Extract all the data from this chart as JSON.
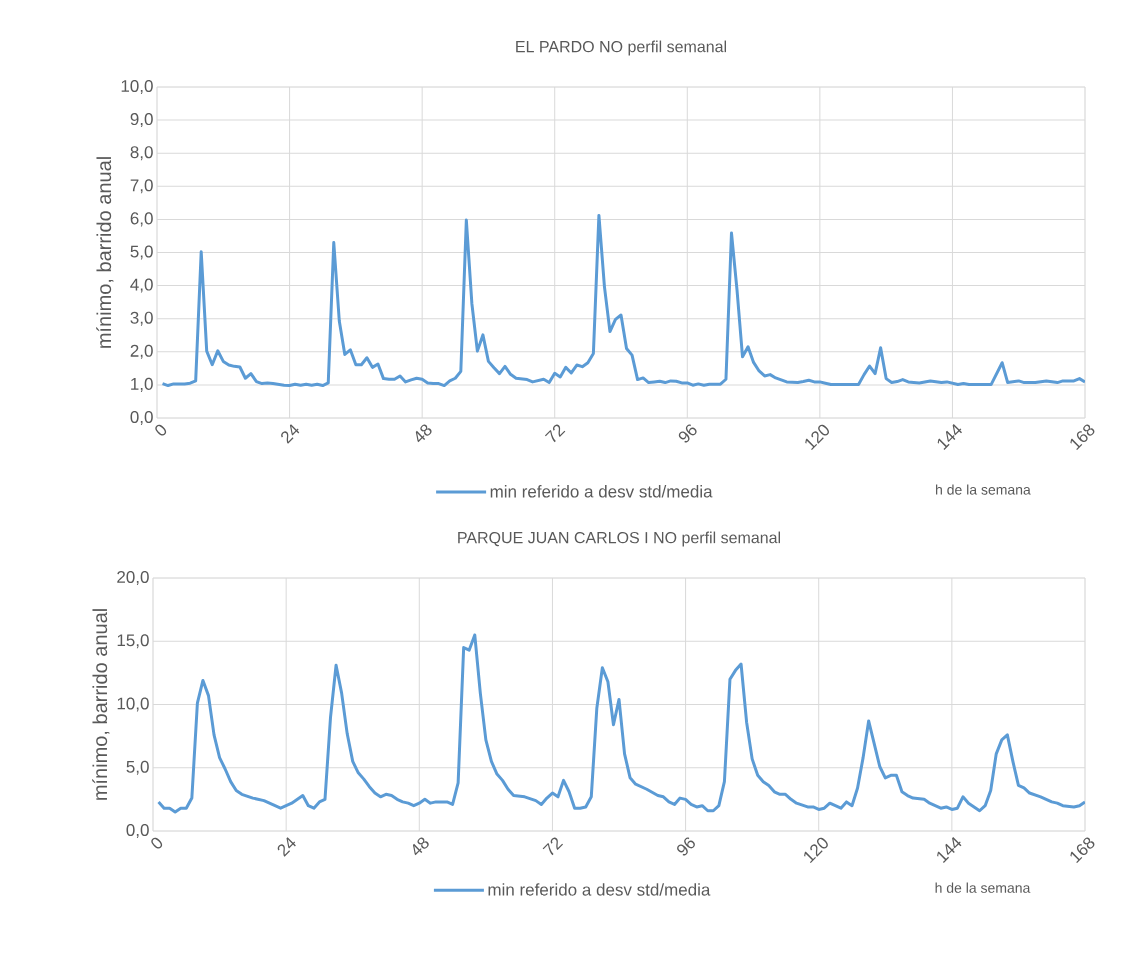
{
  "chart_data": [
    {
      "type": "line",
      "title": "EL PARDO NO perfil semanal",
      "ylabel": "mínimo, barrido anual",
      "xlabel": "h de la semana",
      "x": [
        1,
        2,
        3,
        5,
        6,
        7,
        8,
        9,
        10,
        11,
        12,
        13,
        14,
        15,
        16,
        17,
        18,
        19,
        20,
        21,
        23,
        24,
        25,
        26,
        27,
        28,
        29,
        30,
        31,
        32,
        33,
        34,
        35,
        36,
        37,
        38,
        39,
        40,
        41,
        42,
        43,
        44,
        45,
        46,
        47,
        48,
        49,
        50,
        51,
        52,
        53,
        54,
        55,
        56,
        57,
        58,
        59,
        60,
        61,
        62,
        63,
        64,
        65,
        66,
        67,
        68,
        69,
        70,
        71,
        72,
        73,
        74,
        75,
        76,
        77,
        78,
        79,
        80,
        81,
        82,
        83,
        84,
        85,
        86,
        87,
        88,
        89,
        90,
        91,
        92,
        93,
        94,
        95,
        96,
        97,
        98,
        99,
        100,
        101,
        102,
        103,
        104,
        105,
        106,
        107,
        108,
        109,
        110,
        111,
        112,
        113,
        114,
        115,
        116,
        117,
        118,
        119,
        120,
        121,
        122,
        127,
        128,
        129,
        130,
        131,
        132,
        133,
        134,
        135,
        136,
        138,
        140,
        142,
        143,
        145,
        146,
        147,
        151,
        153,
        154,
        156,
        157,
        159,
        161,
        163,
        164,
        166,
        167,
        168
      ],
      "series": [
        {
          "name": "min referido a desv std/media",
          "color": "#5b9bd5",
          "values": [
            1.04,
            0.98,
            1.03,
            1.03,
            1.05,
            1.12,
            5.02,
            2.02,
            1.61,
            2.03,
            1.71,
            1.6,
            1.56,
            1.54,
            1.2,
            1.34,
            1.1,
            1.04,
            1.06,
            1.04,
            0.99,
            0.98,
            1.02,
            0.99,
            1.02,
            0.99,
            1.02,
            0.98,
            1.06,
            5.3,
            2.93,
            1.92,
            2.06,
            1.61,
            1.61,
            1.82,
            1.53,
            1.63,
            1.19,
            1.17,
            1.17,
            1.27,
            1.09,
            1.15,
            1.2,
            1.17,
            1.06,
            1.04,
            1.04,
            0.98,
            1.12,
            1.2,
            1.41,
            5.98,
            3.46,
            2.02,
            2.51,
            1.71,
            1.52,
            1.34,
            1.56,
            1.32,
            1.2,
            1.18,
            1.16,
            1.09,
            1.13,
            1.17,
            1.07,
            1.35,
            1.24,
            1.53,
            1.36,
            1.6,
            1.55,
            1.67,
            1.95,
            6.12,
            3.97,
            2.61,
            2.98,
            3.11,
            2.1,
            1.9,
            1.16,
            1.21,
            1.07,
            1.09,
            1.11,
            1.07,
            1.12,
            1.11,
            1.06,
            1.06,
            0.99,
            1.03,
            0.99,
            1.02,
            1.02,
            1.02,
            1.17,
            5.59,
            3.87,
            1.85,
            2.15,
            1.68,
            1.42,
            1.27,
            1.31,
            1.21,
            1.15,
            1.09,
            1.08,
            1.07,
            1.1,
            1.14,
            1.09,
            1.09,
            1.05,
            1.01,
            1.01,
            1.31,
            1.57,
            1.34,
            2.12,
            1.19,
            1.07,
            1.1,
            1.16,
            1.09,
            1.06,
            1.12,
            1.07,
            1.09,
            1.01,
            1.04,
            1.01,
            1.01,
            1.67,
            1.07,
            1.12,
            1.07,
            1.07,
            1.12,
            1.07,
            1.12,
            1.12,
            1.19,
            1.09
          ]
        }
      ],
      "xlim": [
        0,
        168
      ],
      "xticks": [
        0,
        24,
        48,
        72,
        96,
        120,
        144,
        168
      ],
      "ylim": [
        0,
        10
      ],
      "yticks": [
        {
          "value": 0,
          "label": "0,0"
        },
        {
          "value": 1,
          "label": "1,0"
        },
        {
          "value": 2,
          "label": "2,0"
        },
        {
          "value": 3,
          "label": "3,0"
        },
        {
          "value": 4,
          "label": "4,0"
        },
        {
          "value": 5,
          "label": "5,0"
        },
        {
          "value": 6,
          "label": "6,0"
        },
        {
          "value": 7,
          "label": "7,0"
        },
        {
          "value": 8,
          "label": "8,0"
        },
        {
          "value": 9,
          "label": "9,0"
        },
        {
          "value": 10,
          "label": "10,0"
        }
      ],
      "grid": true,
      "legend": "bottom"
    },
    {
      "type": "line",
      "title": "PARQUE JUAN CARLOS I NO perfil semanal",
      "ylabel": "mínimo, barrido anual",
      "xlabel": "h de la semana",
      "x": [
        1,
        2,
        3,
        4,
        5,
        6,
        7,
        8,
        9,
        10,
        11,
        12,
        13,
        14,
        15,
        16,
        18,
        20,
        21,
        23,
        24,
        25,
        26,
        27,
        28,
        29,
        30,
        31,
        32,
        33,
        34,
        35,
        36,
        37,
        38,
        39,
        40,
        41,
        42,
        43,
        44,
        45,
        46,
        47,
        48,
        49,
        50,
        51,
        53,
        54,
        55,
        56,
        57,
        58,
        59,
        60,
        61,
        62,
        63,
        64,
        65,
        67,
        69,
        70,
        71,
        72,
        73,
        74,
        75,
        76,
        77,
        78,
        79,
        80,
        81,
        82,
        83,
        84,
        85,
        86,
        87,
        89,
        91,
        92,
        93,
        94,
        95,
        96,
        97,
        98,
        99,
        100,
        101,
        102,
        103,
        104,
        105,
        106,
        107,
        108,
        109,
        110,
        111,
        112,
        113,
        114,
        115,
        116,
        118,
        119,
        120,
        121,
        122,
        124,
        125,
        126,
        127,
        128,
        129,
        130,
        131,
        132,
        133,
        134,
        135,
        136,
        137,
        139,
        140,
        141,
        142,
        143,
        144,
        145,
        146,
        147,
        148,
        149,
        150,
        151,
        152,
        153,
        154,
        155,
        156,
        157,
        158,
        160,
        162,
        163,
        164,
        166,
        167,
        168
      ],
      "series": [
        {
          "name": "min referido a desv std/media",
          "color": "#5b9bd5",
          "values": [
            2.3,
            1.8,
            1.8,
            1.5,
            1.8,
            1.8,
            2.6,
            10.1,
            11.9,
            10.7,
            7.6,
            5.8,
            4.9,
            3.9,
            3.2,
            2.9,
            2.6,
            2.4,
            2.2,
            1.8,
            2.0,
            2.2,
            2.5,
            2.8,
            2.0,
            1.8,
            2.3,
            2.5,
            9.0,
            13.1,
            10.9,
            7.7,
            5.5,
            4.6,
            4.1,
            3.5,
            3.0,
            2.7,
            2.9,
            2.8,
            2.5,
            2.3,
            2.2,
            2.0,
            2.2,
            2.5,
            2.2,
            2.3,
            2.3,
            2.1,
            3.8,
            14.5,
            14.3,
            15.5,
            10.9,
            7.2,
            5.5,
            4.5,
            4.0,
            3.3,
            2.8,
            2.7,
            2.4,
            2.1,
            2.6,
            3.0,
            2.7,
            4.0,
            3.1,
            1.8,
            1.8,
            1.9,
            2.7,
            9.7,
            12.9,
            11.8,
            8.4,
            10.4,
            6.1,
            4.2,
            3.7,
            3.3,
            2.8,
            2.7,
            2.3,
            2.1,
            2.6,
            2.5,
            2.1,
            1.9,
            2.0,
            1.6,
            1.6,
            2.0,
            3.9,
            12.0,
            12.7,
            13.2,
            8.6,
            5.7,
            4.4,
            3.9,
            3.6,
            3.1,
            2.9,
            2.9,
            2.5,
            2.2,
            1.9,
            1.9,
            1.7,
            1.8,
            2.2,
            1.8,
            2.3,
            2.0,
            3.4,
            5.8,
            8.7,
            6.9,
            5.1,
            4.2,
            4.4,
            4.4,
            3.1,
            2.8,
            2.6,
            2.5,
            2.2,
            2.0,
            1.8,
            1.9,
            1.7,
            1.8,
            2.7,
            2.2,
            1.9,
            1.6,
            2.0,
            3.2,
            6.1,
            7.2,
            7.6,
            5.5,
            3.6,
            3.4,
            3.0,
            2.7,
            2.3,
            2.2,
            2.0,
            1.9,
            2.0,
            2.3
          ]
        }
      ],
      "xlim": [
        0,
        168
      ],
      "xticks": [
        0,
        24,
        48,
        72,
        96,
        120,
        144,
        168
      ],
      "ylim": [
        0,
        20
      ],
      "yticks": [
        {
          "value": 0,
          "label": "0,0"
        },
        {
          "value": 5,
          "label": "5,0"
        },
        {
          "value": 10,
          "label": "10,0"
        },
        {
          "value": 15,
          "label": "15,0"
        },
        {
          "value": 20,
          "label": "20,0"
        }
      ],
      "grid": true,
      "legend": "bottom"
    }
  ]
}
